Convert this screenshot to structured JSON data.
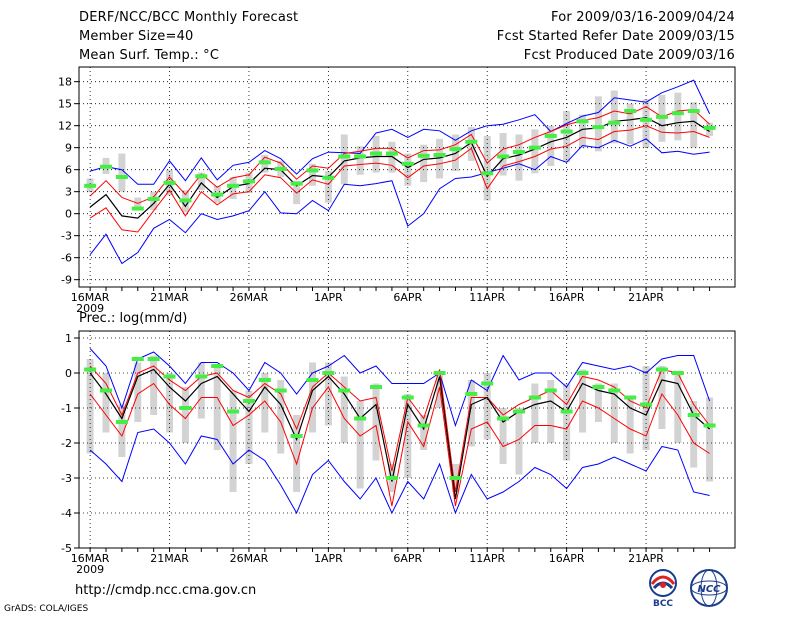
{
  "header": {
    "title": "DERF/NCC/BCC Monthly Forecast",
    "member_size": "Member Size=40",
    "variable": "Mean Surf. Temp.: °C",
    "forecast_period": "For 2009/03/16-2009/04/24",
    "start_date": "Fcst Started Refer Date 2009/03/15",
    "produced_date": "Fcst Produced Date 2009/03/16"
  },
  "precip_label": "Prec.: log(mm/d)",
  "footer": {
    "url": "http://cmdp.ncc.cma.gov.cn",
    "credit": "GrADS: COLA/IGES"
  },
  "logos": {
    "bcc": "BCC",
    "ncc": "NCC"
  },
  "colors": {
    "max_min": "#0000ff",
    "spread": "#ff0000",
    "mean": "#000000",
    "box": "#d3d3d3",
    "marker": "#44ee44",
    "grid": "#000000"
  },
  "chart_data": [
    {
      "type": "line",
      "title": "Mean Surf. Temp.: °C",
      "x": [
        1,
        2,
        3,
        4,
        5,
        6,
        7,
        8,
        9,
        10,
        11,
        12,
        13,
        14,
        15,
        16,
        17,
        18,
        19,
        20,
        21,
        22,
        23,
        24,
        25,
        26,
        27,
        28,
        29,
        30,
        31,
        32,
        33,
        34,
        35,
        36,
        37,
        38,
        39,
        40
      ],
      "xtick_positions": [
        1,
        6,
        11,
        16,
        21,
        26,
        31,
        36
      ],
      "xtick_labels": [
        "16MAR",
        "21MAR",
        "26MAR",
        "1APR",
        "6APR",
        "11APR",
        "16APR",
        "21APR"
      ],
      "x_year_label": "2009",
      "ylim": [
        -10,
        20
      ],
      "yticks": [
        -9,
        -6,
        -3,
        0,
        3,
        6,
        9,
        12,
        15,
        18
      ],
      "series": [
        {
          "name": "max",
          "values": [
            5.8,
            6.4,
            6.0,
            4.0,
            4.0,
            7.2,
            4.5,
            7.6,
            4.6,
            6.6,
            7.0,
            8.6,
            7.5,
            5.4,
            7.5,
            8.4,
            8.3,
            8.2,
            11.0,
            11.5,
            10.4,
            11.5,
            11.3,
            10.0,
            11.3,
            12.0,
            12.2,
            12.8,
            13.5,
            11.2,
            12.3,
            13.3,
            13.8,
            15.8,
            15.5,
            15.2,
            16.5,
            17.3,
            18.2,
            13.6
          ]
        },
        {
          "name": "upper",
          "values": [
            2.4,
            4.5,
            2.2,
            1.4,
            2.3,
            5.0,
            2.6,
            5.4,
            3.6,
            4.9,
            5.3,
            7.7,
            6.9,
            4.7,
            6.5,
            6.2,
            8.2,
            8.5,
            8.9,
            8.9,
            7.6,
            8.6,
            8.7,
            9.4,
            10.8,
            6.9,
            8.8,
            9.4,
            10.4,
            11.2,
            12.1,
            12.7,
            13.1,
            14.0,
            13.6,
            14.6,
            13.2,
            14.0,
            14.2,
            12.2
          ]
        },
        {
          "name": "mean",
          "values": [
            0.9,
            2.6,
            -0.3,
            -0.6,
            1.4,
            4.0,
            1.0,
            4.2,
            2.2,
            3.7,
            4.1,
            6.2,
            6.0,
            3.8,
            5.2,
            5.0,
            7.2,
            7.6,
            7.8,
            7.8,
            6.3,
            7.4,
            7.6,
            8.2,
            9.7,
            5.1,
            7.5,
            8.0,
            8.8,
            9.8,
            10.4,
            11.5,
            11.7,
            12.6,
            12.8,
            13.1,
            12.0,
            12.4,
            12.6,
            11.2
          ]
        },
        {
          "name": "lower",
          "values": [
            -0.6,
            0.8,
            -2.2,
            -2.5,
            0.4,
            3.2,
            -0.3,
            3.0,
            1.2,
            2.7,
            3.0,
            5.3,
            4.9,
            2.8,
            4.6,
            4.0,
            6.5,
            6.7,
            6.9,
            6.6,
            4.9,
            6.5,
            6.8,
            7.3,
            8.9,
            3.4,
            6.5,
            7.1,
            7.8,
            8.8,
            9.2,
            10.4,
            10.1,
            11.2,
            11.4,
            12.0,
            11.1,
            11.0,
            11.2,
            10.4
          ]
        },
        {
          "name": "min",
          "values": [
            -5.6,
            -2.8,
            -6.8,
            -5.3,
            -2.0,
            -0.8,
            -2.6,
            0.0,
            -0.8,
            -0.3,
            0.4,
            3.0,
            0.1,
            0.0,
            1.8,
            0.4,
            4.0,
            3.8,
            4.1,
            4.5,
            -1.7,
            0.0,
            3.4,
            4.8,
            5.0,
            5.6,
            6.2,
            6.8,
            6.0,
            7.8,
            7.0,
            9.3,
            9.0,
            10.0,
            9.2,
            10.2,
            8.3,
            8.5,
            8.1,
            8.4
          ]
        }
      ],
      "boxes": [
        {
          "x": 1,
          "low": 3.0,
          "high": 4.8
        },
        {
          "x": 2,
          "low": 5.4,
          "high": 7.6
        },
        {
          "x": 3,
          "low": 3.0,
          "high": 8.2
        },
        {
          "x": 4,
          "low": 0.5,
          "high": 2.2
        },
        {
          "x": 5,
          "low": 0.5,
          "high": 3.0
        },
        {
          "x": 6,
          "low": 2.5,
          "high": 6.0
        },
        {
          "x": 7,
          "low": 0.2,
          "high": 3.2
        },
        {
          "x": 8,
          "low": 3.2,
          "high": 5.6
        },
        {
          "x": 9,
          "low": 1.5,
          "high": 3.8
        },
        {
          "x": 10,
          "low": 2.0,
          "high": 5.0
        },
        {
          "x": 11,
          "low": 2.8,
          "high": 5.6
        },
        {
          "x": 12,
          "low": 5.6,
          "high": 8.0
        },
        {
          "x": 13,
          "low": 5.0,
          "high": 7.2
        },
        {
          "x": 14,
          "low": 1.3,
          "high": 4.5
        },
        {
          "x": 15,
          "low": 3.8,
          "high": 6.8
        },
        {
          "x": 16,
          "low": 1.5,
          "high": 5.8
        },
        {
          "x": 17,
          "low": 4.0,
          "high": 10.8
        },
        {
          "x": 18,
          "low": 5.3,
          "high": 9.2
        },
        {
          "x": 19,
          "low": 5.6,
          "high": 10.6
        },
        {
          "x": 20,
          "low": 5.6,
          "high": 9.8
        },
        {
          "x": 21,
          "low": 3.8,
          "high": 8.2
        },
        {
          "x": 22,
          "low": 4.3,
          "high": 9.4
        },
        {
          "x": 23,
          "low": 4.8,
          "high": 10.2
        },
        {
          "x": 24,
          "low": 5.8,
          "high": 10.8
        },
        {
          "x": 25,
          "low": 7.2,
          "high": 11.8
        },
        {
          "x": 26,
          "low": 1.8,
          "high": 10.6
        },
        {
          "x": 27,
          "low": 5.2,
          "high": 11.0
        },
        {
          "x": 28,
          "low": 4.5,
          "high": 10.8
        },
        {
          "x": 29,
          "low": 5.5,
          "high": 11.5
        },
        {
          "x": 30,
          "low": 6.5,
          "high": 12.0
        },
        {
          "x": 31,
          "low": 7.0,
          "high": 14.0
        },
        {
          "x": 32,
          "low": 9.0,
          "high": 13.5
        },
        {
          "x": 33,
          "low": 8.5,
          "high": 16.0
        },
        {
          "x": 34,
          "low": 9.6,
          "high": 16.8
        },
        {
          "x": 35,
          "low": 9.5,
          "high": 15.0
        },
        {
          "x": 36,
          "low": 9.0,
          "high": 15.6
        },
        {
          "x": 37,
          "low": 9.8,
          "high": 16.2
        },
        {
          "x": 38,
          "low": 10.0,
          "high": 16.5
        },
        {
          "x": 39,
          "low": 9.0,
          "high": 15.2
        },
        {
          "x": 40,
          "low": 10.6,
          "high": 12.4
        }
      ],
      "markers": [
        3.8,
        6.4,
        5.0,
        0.7,
        2.0,
        4.2,
        1.8,
        5.1,
        2.6,
        3.8,
        4.4,
        7.0,
        6.1,
        4.1,
        5.9,
        4.9,
        7.8,
        7.8,
        8.2,
        8.2,
        6.8,
        7.9,
        8.0,
        8.8,
        9.8,
        5.5,
        7.8,
        8.4,
        9.0,
        10.6,
        11.2,
        12.6,
        11.8,
        12.4,
        14.0,
        12.8,
        13.2,
        13.7,
        14.0,
        11.7
      ]
    },
    {
      "type": "line",
      "title": "Prec.: log(mm/d)",
      "x": [
        1,
        2,
        3,
        4,
        5,
        6,
        7,
        8,
        9,
        10,
        11,
        12,
        13,
        14,
        15,
        16,
        17,
        18,
        19,
        20,
        21,
        22,
        23,
        24,
        25,
        26,
        27,
        28,
        29,
        30,
        31,
        32,
        33,
        34,
        35,
        36,
        37,
        38,
        39,
        40
      ],
      "xtick_positions": [
        1,
        6,
        11,
        16,
        21,
        26,
        31,
        36
      ],
      "xtick_labels": [
        "16MAR",
        "21MAR",
        "26MAR",
        "1APR",
        "6APR",
        "11APR",
        "16APR",
        "21APR"
      ],
      "x_year_label": "2009",
      "ylim": [
        -5,
        1.2
      ],
      "yticks": [
        -5,
        -4,
        -3,
        -2,
        -1,
        0,
        1
      ],
      "series": [
        {
          "name": "max",
          "values": [
            0.7,
            0.2,
            -1.0,
            0.4,
            0.6,
            0.2,
            -0.3,
            0.3,
            0.3,
            0.0,
            -0.5,
            0.3,
            0.0,
            -0.6,
            0.0,
            0.2,
            0.5,
            0.0,
            0.2,
            -0.3,
            -0.3,
            -0.3,
            0.0,
            -1.5,
            -0.2,
            -0.5,
            0.5,
            -0.2,
            0.0,
            0.0,
            -0.4,
            0.3,
            0.2,
            0.1,
            0.2,
            0.0,
            0.4,
            0.5,
            0.5,
            -0.8
          ]
        },
        {
          "name": "upper",
          "values": [
            0.2,
            -0.3,
            -1.2,
            0.0,
            0.2,
            -0.2,
            -0.5,
            -0.1,
            0.0,
            -0.5,
            -0.7,
            -0.3,
            -0.6,
            -1.6,
            -0.4,
            0.0,
            -0.4,
            -0.8,
            -0.7,
            -2.8,
            -0.7,
            -1.3,
            0.1,
            -3.4,
            -0.7,
            -0.7,
            -1.2,
            -0.9,
            -0.7,
            -0.5,
            -0.9,
            -0.1,
            -0.2,
            -0.4,
            -0.8,
            -1.0,
            0.1,
            0.0,
            -0.9,
            -1.5
          ]
        },
        {
          "name": "mean",
          "values": [
            0.0,
            -0.6,
            -1.3,
            -0.1,
            0.1,
            -0.4,
            -0.8,
            -0.3,
            -0.1,
            -0.6,
            -1.1,
            -0.4,
            -0.9,
            -1.9,
            -0.5,
            -0.1,
            -0.6,
            -1.3,
            -0.9,
            -3.1,
            -0.9,
            -1.6,
            -0.1,
            -3.6,
            -0.9,
            -0.7,
            -1.4,
            -1.1,
            -0.9,
            -0.8,
            -1.1,
            -0.3,
            -0.5,
            -0.6,
            -1.0,
            -1.2,
            -0.2,
            -0.3,
            -1.2,
            -1.6
          ]
        },
        {
          "name": "lower",
          "values": [
            -0.6,
            -1.2,
            -1.8,
            -0.6,
            -0.3,
            -0.9,
            -1.3,
            -0.7,
            -0.7,
            -1.5,
            -1.2,
            -0.8,
            -1.4,
            -2.6,
            -1.0,
            -0.4,
            -1.3,
            -1.8,
            -1.5,
            -3.8,
            -1.4,
            -2.1,
            -0.4,
            -3.8,
            -1.6,
            -1.4,
            -2.1,
            -1.9,
            -1.5,
            -1.5,
            -1.6,
            -0.8,
            -1.0,
            -1.3,
            -1.6,
            -1.8,
            -0.6,
            -1.2,
            -2.0,
            -2.3
          ]
        },
        {
          "name": "min",
          "values": [
            -2.2,
            -2.6,
            -3.1,
            -1.7,
            -1.6,
            -2.0,
            -2.6,
            -1.8,
            -1.9,
            -2.6,
            -2.2,
            -2.5,
            -3.2,
            -4.0,
            -2.9,
            -2.5,
            -3.1,
            -3.6,
            -3.0,
            -4.0,
            -3.1,
            -3.6,
            -2.6,
            -4.0,
            -2.9,
            -3.6,
            -3.4,
            -3.1,
            -2.7,
            -2.9,
            -3.3,
            -2.7,
            -2.6,
            -2.4,
            -2.6,
            -2.8,
            -2.1,
            -2.2,
            -3.4,
            -3.5
          ]
        }
      ],
      "boxes": [
        {
          "x": 1,
          "low": -2.3,
          "high": 0.4
        },
        {
          "x": 2,
          "low": -1.7,
          "high": 0.0
        },
        {
          "x": 3,
          "low": -2.4,
          "high": -0.9
        },
        {
          "x": 4,
          "low": -1.4,
          "high": 0.3
        },
        {
          "x": 5,
          "low": -1.2,
          "high": 0.5
        },
        {
          "x": 6,
          "low": -1.7,
          "high": 0.0
        },
        {
          "x": 7,
          "low": -2.0,
          "high": -0.4
        },
        {
          "x": 8,
          "low": -1.3,
          "high": 0.3
        },
        {
          "x": 9,
          "low": -2.2,
          "high": 0.2
        },
        {
          "x": 10,
          "low": -3.4,
          "high": -0.5
        },
        {
          "x": 11,
          "low": -2.6,
          "high": -0.5
        },
        {
          "x": 12,
          "low": -1.7,
          "high": 0.0
        },
        {
          "x": 13,
          "low": -2.3,
          "high": -0.2
        },
        {
          "x": 14,
          "low": -3.4,
          "high": -1.2
        },
        {
          "x": 15,
          "low": -1.7,
          "high": 0.3
        },
        {
          "x": 16,
          "low": -1.5,
          "high": 0.3
        },
        {
          "x": 17,
          "low": -2.0,
          "high": -0.1
        },
        {
          "x": 18,
          "low": -3.3,
          "high": -0.8
        },
        {
          "x": 19,
          "low": -2.5,
          "high": -0.3
        },
        {
          "x": 20,
          "low": -3.4,
          "high": -2.6
        },
        {
          "x": 21,
          "low": -3.0,
          "high": -0.6
        },
        {
          "x": 22,
          "low": -2.2,
          "high": -1.2
        },
        {
          "x": 23,
          "low": -1.0,
          "high": 0.0
        },
        {
          "x": 24,
          "low": -3.4,
          "high": -2.6
        },
        {
          "x": 25,
          "low": -2.1,
          "high": -0.2
        },
        {
          "x": 26,
          "low": -1.9,
          "high": 0.0
        },
        {
          "x": 27,
          "low": -2.6,
          "high": -1.0
        },
        {
          "x": 28,
          "low": -2.9,
          "high": -1.0
        },
        {
          "x": 29,
          "low": -2.0,
          "high": -0.3
        },
        {
          "x": 30,
          "low": -2.0,
          "high": -0.2
        },
        {
          "x": 31,
          "low": -2.5,
          "high": -0.3
        },
        {
          "x": 32,
          "low": -1.7,
          "high": 0.1
        },
        {
          "x": 33,
          "low": -1.4,
          "high": -0.3
        },
        {
          "x": 34,
          "low": -2.0,
          "high": -0.3
        },
        {
          "x": 35,
          "low": -2.3,
          "high": -0.7
        },
        {
          "x": 36,
          "low": -2.2,
          "high": 0.2
        },
        {
          "x": 37,
          "low": -1.6,
          "high": 0.2
        },
        {
          "x": 38,
          "low": -2.0,
          "high": 0.0
        },
        {
          "x": 39,
          "low": -2.7,
          "high": -0.8
        },
        {
          "x": 40,
          "low": -3.1,
          "high": -0.7
        }
      ],
      "markers": [
        0.1,
        -0.5,
        -1.4,
        0.4,
        0.4,
        -0.1,
        -1.0,
        -0.1,
        0.2,
        -1.1,
        -0.8,
        -0.2,
        -0.5,
        -1.8,
        -0.2,
        0.0,
        -0.5,
        -1.3,
        -0.4,
        -3.0,
        -0.7,
        -1.5,
        0.0,
        -3.0,
        -0.6,
        -0.3,
        -1.3,
        -1.1,
        -0.7,
        -0.5,
        -1.1,
        0.0,
        -0.4,
        -0.5,
        -0.7,
        -0.9,
        0.1,
        0.0,
        -1.2,
        -1.5
      ]
    }
  ]
}
